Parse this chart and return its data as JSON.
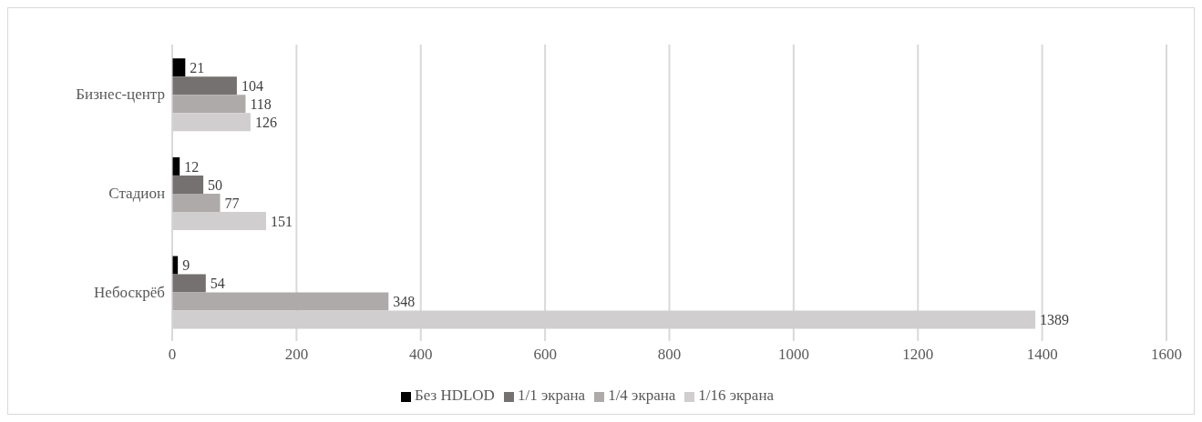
{
  "chart_data": {
    "type": "bar",
    "orientation": "horizontal",
    "categories": [
      "Бизнес-центр",
      "Стадион",
      "Небоскрёб"
    ],
    "series": [
      {
        "name": "Без HDLOD",
        "color": "#000000",
        "values": [
          21,
          12,
          9
        ]
      },
      {
        "name": "1/1 экрана",
        "color": "#767171",
        "values": [
          104,
          50,
          54
        ]
      },
      {
        "name": "1/4 экрана",
        "color": "#aeaaaa",
        "values": [
          118,
          77,
          348
        ]
      },
      {
        "name": "1/16 экрана",
        "color": "#d0cece",
        "values": [
          126,
          151,
          1389
        ]
      }
    ],
    "xlim": [
      0,
      1600
    ],
    "xticks": [
      0,
      200,
      400,
      600,
      800,
      1000,
      1200,
      1400,
      1600
    ],
    "grid": "x",
    "legend": "bottom",
    "data_labels": true
  }
}
